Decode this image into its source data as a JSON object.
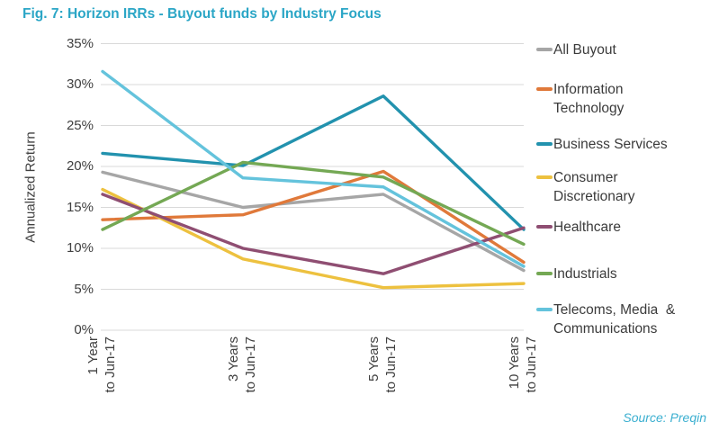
{
  "title": "Fig. 7: Horizon IRRs - Buyout funds by Industry Focus",
  "source": "Source: Preqin",
  "colors": {
    "title_accent": "#2BA6C6",
    "source_text": "#3BAFD0",
    "axis_text": "#404040",
    "gridline": "#D9D9D9"
  },
  "chart_data": {
    "type": "line",
    "title": "Fig. 7: Horizon IRRs - Buyout funds by Industry Focus",
    "xlabel": "",
    "ylabel": "Annualized Return",
    "ylim": [
      0,
      35
    ],
    "ytick_step": 5,
    "ytick_labels": [
      "0%",
      "5%",
      "10%",
      "15%",
      "20%",
      "25%",
      "30%",
      "35%"
    ],
    "grid": "horizontal",
    "legend_position": "right",
    "categories": [
      "1 Year to Jun-17",
      "3 Years to Jun-17",
      "5 Years to Jun-17",
      "10 Years to Jun-17"
    ],
    "category_label_lines": [
      [
        "1 Year",
        "to Jun-17"
      ],
      [
        "3 Years",
        "to Jun-17"
      ],
      [
        "5 Years",
        "to Jun-17"
      ],
      [
        "10 Years",
        "to Jun-17"
      ]
    ],
    "series": [
      {
        "name": "All Buyout",
        "color": "#A6A6A6",
        "values": [
          19.3,
          15.0,
          16.6,
          7.3
        ],
        "legend_lines": [
          "All Buyout"
        ]
      },
      {
        "name": "Information Technology",
        "color": "#E0793A",
        "values": [
          13.5,
          14.1,
          19.4,
          8.3
        ],
        "legend_lines": [
          "Information",
          "Technology"
        ]
      },
      {
        "name": "Business Services",
        "color": "#2292AE",
        "values": [
          21.6,
          20.1,
          28.6,
          12.3
        ],
        "legend_lines": [
          "Business Services"
        ]
      },
      {
        "name": "Consumer Discretionary",
        "color": "#EDC13F",
        "values": [
          17.2,
          8.7,
          5.2,
          5.7
        ],
        "legend_lines": [
          "Consumer",
          "Discretionary"
        ]
      },
      {
        "name": "Healthcare",
        "color": "#8F4E72",
        "values": [
          16.6,
          10.0,
          6.9,
          12.5
        ],
        "legend_lines": [
          "Healthcare"
        ]
      },
      {
        "name": "Industrials",
        "color": "#74A854",
        "values": [
          12.3,
          20.5,
          18.7,
          10.5
        ],
        "legend_lines": [
          "Industrials"
        ]
      },
      {
        "name": "Telecoms, Media & Communications",
        "color": "#64C3DC",
        "values": [
          31.6,
          18.6,
          17.5,
          7.8
        ],
        "legend_lines": [
          "Telecoms, Media  &",
          "Communications"
        ]
      }
    ]
  }
}
